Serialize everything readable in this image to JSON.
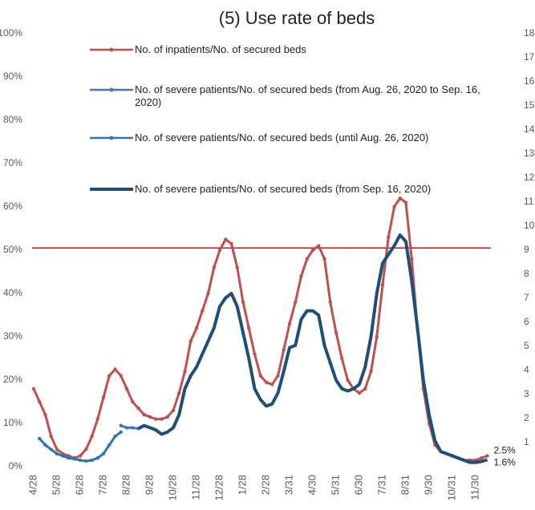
{
  "chart_data": {
    "type": "line",
    "title": "(5) Use rate of beds",
    "categories": [
      "4/28",
      null,
      null,
      null,
      "5/28",
      null,
      null,
      null,
      "6/28",
      null,
      null,
      null,
      "7/28",
      null,
      null,
      null,
      "8/28",
      null,
      null,
      null,
      "9/28",
      null,
      null,
      null,
      "10/28",
      null,
      null,
      null,
      "11/28",
      null,
      null,
      null,
      "12/28",
      null,
      null,
      null,
      "1/28",
      null,
      null,
      null,
      "2/28",
      null,
      null,
      null,
      "3/31",
      null,
      null,
      null,
      "4/30",
      null,
      null,
      null,
      "5/31",
      null,
      null,
      null,
      "6/30",
      null,
      null,
      null,
      "7/31",
      null,
      null,
      null,
      "8/31",
      null,
      null,
      null,
      "9/30",
      null,
      null,
      null,
      "10/31",
      null,
      null,
      null,
      "11/30",
      null,
      null
    ],
    "series": [
      {
        "name": "No. of inpatients/No. of secured beds",
        "color": "#c0504d",
        "markers": true,
        "values": [
          18,
          15,
          12,
          7,
          4,
          3,
          2.5,
          2,
          2.5,
          4,
          7,
          11,
          16,
          21,
          22.5,
          21,
          18,
          15,
          13.5,
          12,
          11.5,
          11,
          11,
          11.5,
          13,
          17,
          22,
          29,
          32,
          36,
          40,
          46,
          50,
          52.5,
          51.5,
          46,
          38,
          32,
          26,
          21,
          19.5,
          19,
          21,
          27,
          33,
          38,
          44,
          48,
          50,
          51,
          48,
          38,
          31,
          25,
          20,
          18,
          17,
          18,
          22,
          30,
          42,
          53,
          60,
          62,
          61,
          48,
          32,
          18,
          10,
          5,
          3.5,
          3,
          2.5,
          2,
          1.5,
          1.5,
          1.5,
          2,
          2.5
        ]
      },
      {
        "name": "No. of severe patients/No. of secured beds (from Aug. 26, 2020 to Sep. 16, 2020)",
        "color": "#4472c4",
        "markers": true,
        "values": [
          null,
          null,
          null,
          null,
          null,
          null,
          null,
          null,
          null,
          null,
          null,
          null,
          null,
          null,
          null,
          9.5,
          9,
          9,
          8.8,
          null,
          null,
          null,
          null,
          null,
          null,
          null,
          null,
          null,
          null,
          null,
          null,
          null,
          null,
          null,
          null,
          null,
          null,
          null,
          null,
          null,
          null,
          null,
          null,
          null,
          null,
          null,
          null,
          null,
          null,
          null,
          null,
          null,
          null,
          null,
          null,
          null,
          null,
          null,
          null,
          null,
          null,
          null,
          null,
          null,
          null,
          null,
          null,
          null,
          null,
          null,
          null,
          null,
          null,
          null,
          null,
          null,
          null,
          null,
          null
        ]
      },
      {
        "name": "No. of severe patients/No. of secured beds (until Aug. 26, 2020)",
        "color": "#2e75b6",
        "markers": true,
        "values": [
          null,
          6.5,
          5,
          4,
          3,
          2.5,
          2,
          1.8,
          1.5,
          1.3,
          1.5,
          2,
          3,
          5,
          7,
          8,
          null,
          null,
          null,
          null,
          null,
          null,
          null,
          null,
          null,
          null,
          null,
          null,
          null,
          null,
          null,
          null,
          null,
          null,
          null,
          null,
          null,
          null,
          null,
          null,
          null,
          null,
          null,
          null,
          null,
          null,
          null,
          null,
          null,
          null,
          null,
          null,
          null,
          null,
          null,
          null,
          null,
          null,
          null,
          null,
          null,
          null,
          null,
          null,
          null,
          null,
          null,
          null,
          null,
          null,
          null,
          null,
          null,
          null,
          null,
          null,
          null,
          null,
          null
        ]
      },
      {
        "name": "No. of severe patients/No. of secured beds (from Sep. 16, 2020)",
        "color": "#1f4e79",
        "markers": false,
        "values": [
          null,
          null,
          null,
          null,
          null,
          null,
          null,
          null,
          null,
          null,
          null,
          null,
          null,
          null,
          null,
          null,
          null,
          null,
          8.8,
          9.5,
          9,
          8.5,
          7.5,
          8,
          9,
          12,
          18,
          21,
          23,
          26,
          29,
          32,
          37,
          39,
          40,
          37,
          31,
          25,
          18,
          15.5,
          14,
          14.5,
          17,
          22,
          27.5,
          28,
          34,
          36,
          36,
          35,
          28,
          24,
          20,
          18,
          17.5,
          18,
          19,
          23,
          30,
          40,
          47,
          49,
          51,
          53.5,
          52,
          43,
          32,
          20,
          12,
          6,
          3.5,
          3,
          2.5,
          2,
          1.5,
          1,
          1,
          1.2,
          1.6
        ]
      }
    ],
    "ylim": [
      0,
      100
    ],
    "yticks": [
      {
        "value": 0,
        "label": "0%"
      },
      {
        "value": 10,
        "label": "10%"
      },
      {
        "value": 20,
        "label": "20%"
      },
      {
        "value": 30,
        "label": "30%"
      },
      {
        "value": 40,
        "label": "40%"
      },
      {
        "value": 50,
        "label": "50%"
      },
      {
        "value": 60,
        "label": "60%"
      },
      {
        "value": 70,
        "label": "70%"
      },
      {
        "value": 80,
        "label": "80%"
      },
      {
        "value": 90,
        "label": "90%"
      },
      {
        "value": 100,
        "label": "100%"
      }
    ],
    "y2lim": [
      0,
      18
    ],
    "y2ticks": [
      1,
      2,
      3,
      4,
      5,
      6,
      7,
      8,
      9,
      10,
      11,
      12,
      13,
      14,
      15,
      16,
      17,
      18
    ],
    "reference_line": {
      "value": 50.5,
      "color": "#ff0000"
    },
    "annotations": [
      {
        "text": "2.5%",
        "series": 0
      },
      {
        "text": "1.6%",
        "series": 3
      }
    ]
  }
}
